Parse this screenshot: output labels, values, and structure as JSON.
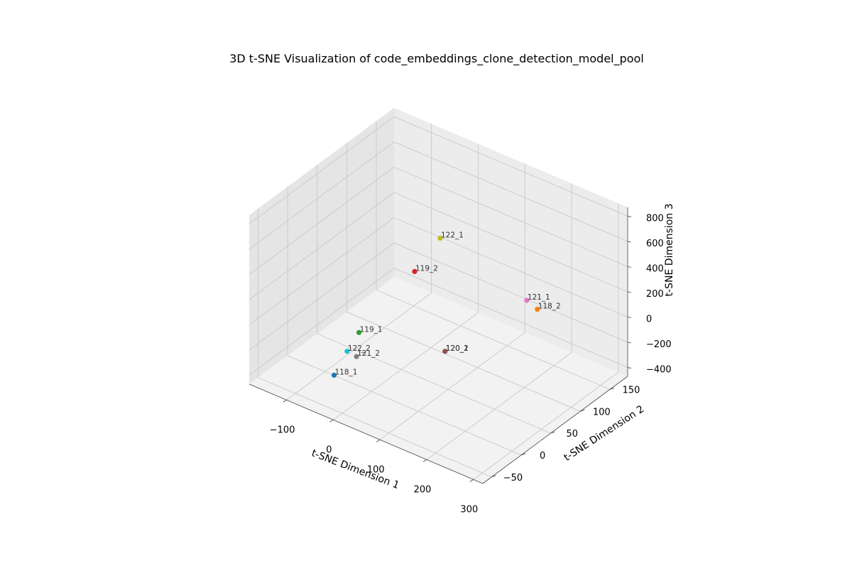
{
  "chart_data": {
    "type": "scatter",
    "title": "3D t-SNE Visualization of code_embeddings_clone_detection_model_pool",
    "xlabel": "t-SNE Dimension 1",
    "ylabel": "t-SNE Dimension 2",
    "zlabel": "t-SNE Dimension 3",
    "xticks": [
      "−100",
      "0",
      "100",
      "200",
      "300"
    ],
    "yticks": [
      "−50",
      "0",
      "50",
      "100",
      "150"
    ],
    "zticks": [
      "−400",
      "−200",
      "0",
      "200",
      "400",
      "600",
      "800"
    ],
    "xlim": [
      -180,
      320
    ],
    "ylim": [
      -65,
      180
    ],
    "zlim": [
      -470,
      870
    ],
    "grid": true,
    "points": [
      {
        "label": "118_1",
        "x": -30,
        "y": -40,
        "z": -250,
        "color": "#1f77b4"
      },
      {
        "label": "118_2",
        "x": 190,
        "y": 130,
        "z": 30,
        "color": "#ff7f0e"
      },
      {
        "label": "119_1",
        "x": -40,
        "y": 10,
        "z": -100,
        "color": "#2ca02c"
      },
      {
        "label": "119_2",
        "x": -60,
        "y": 120,
        "z": -30,
        "color": "#d62728"
      },
      {
        "label": "120_1",
        "x": 100,
        "y": 45,
        "z": -150,
        "color": "#9467bd"
      },
      {
        "label": "120_2",
        "x": 100,
        "y": 45,
        "z": -150,
        "color": "#8c564b"
      },
      {
        "label": "121_1",
        "x": 180,
        "y": 120,
        "z": 120,
        "color": "#e377c2"
      },
      {
        "label": "121_2",
        "x": -20,
        "y": -10,
        "z": -190,
        "color": "#7f7f7f"
      },
      {
        "label": "122_1",
        "x": 20,
        "y": 100,
        "z": 430,
        "color": "#bcbd22"
      },
      {
        "label": "122_2",
        "x": -40,
        "y": -10,
        "z": -180,
        "color": "#17becf"
      }
    ]
  }
}
